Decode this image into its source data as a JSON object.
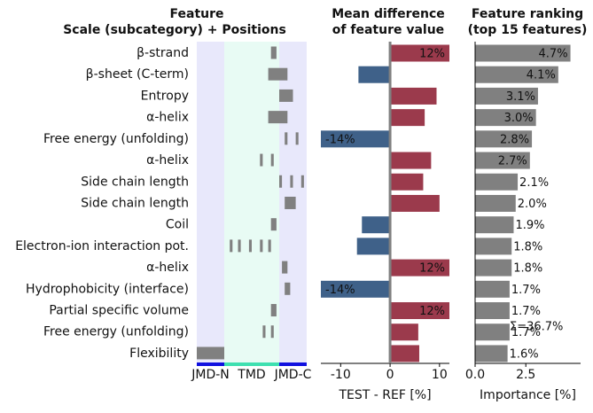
{
  "chart_data": [
    {
      "type": "feature-map",
      "title": [
        "Feature",
        "Scale (subcategory)  +  Positions"
      ],
      "categories": [
        "β-strand",
        "β-sheet (C-term)",
        "Entropy",
        "α-helix",
        "Free energy (unfolding)",
        "α-helix",
        "Side chain length",
        "Side chain length",
        "Coil",
        "Electron-ion interaction pot.",
        "α-helix",
        "Hydrophobicity (interface)",
        "Partial specific volume",
        "Free energy (unfolding)",
        "Flexibility"
      ],
      "segments": [
        [
          [
            27,
            29
          ]
        ],
        [
          [
            26,
            33
          ]
        ],
        [
          [
            30,
            35
          ]
        ],
        [
          [
            26,
            33
          ]
        ],
        [
          [
            32,
            33
          ],
          [
            36,
            37
          ]
        ],
        [
          [
            23,
            24
          ],
          [
            27,
            28
          ]
        ],
        [
          [
            30,
            31
          ],
          [
            34,
            35
          ],
          [
            38,
            39
          ]
        ],
        [
          [
            32,
            36
          ]
        ],
        [
          [
            27,
            29
          ]
        ],
        [
          [
            12,
            13
          ],
          [
            15,
            16
          ],
          [
            19,
            20
          ],
          [
            23,
            24
          ],
          [
            26,
            27
          ]
        ],
        [
          [
            31,
            33
          ]
        ],
        [
          [
            32,
            34
          ]
        ],
        [
          [
            27,
            29
          ]
        ],
        [
          [
            24,
            25
          ],
          [
            27,
            28
          ]
        ],
        [
          [
            0,
            10
          ]
        ]
      ],
      "xlim": [
        0,
        40
      ],
      "color": "#808080",
      "regions": [
        {
          "label": "JMD-N",
          "start": 0,
          "end": 10,
          "color": "#e8e8fb",
          "band_color": "#1010e0"
        },
        {
          "label": "TMD",
          "start": 10,
          "end": 30,
          "color": "#e8fbf4",
          "band_color": "#3ee0b0"
        },
        {
          "label": "JMD-C",
          "start": 30,
          "end": 40,
          "color": "#e8e8fb",
          "band_color": "#1010e0"
        }
      ]
    },
    {
      "type": "bar",
      "title": [
        "Mean difference",
        "of feature value"
      ],
      "xlabel": "TEST - REF [%]",
      "values": [
        12,
        -6.4,
        9.4,
        7,
        -14,
        8.3,
        6.7,
        10,
        -5.7,
        -6.7,
        12,
        -14,
        12,
        5.7,
        5.9
      ],
      "value_labels": [
        "12%",
        null,
        null,
        null,
        "-14%",
        null,
        null,
        null,
        null,
        null,
        "12%",
        "-14%",
        "12%",
        null,
        null
      ],
      "positive_color": "#9b3a4c",
      "negative_color": "#3f6189",
      "xlim": [
        -14,
        12
      ],
      "xticks": [
        -10,
        0,
        10
      ]
    },
    {
      "type": "bar",
      "title": [
        "Feature ranking",
        "(top 15 features)"
      ],
      "xlabel": "Importance [%]",
      "values": [
        4.7,
        4.1,
        3.1,
        3.0,
        2.8,
        2.7,
        2.1,
        2.0,
        1.9,
        1.8,
        1.8,
        1.7,
        1.7,
        1.7,
        1.6
      ],
      "value_labels": [
        "4.7%",
        "4.1%",
        "3.1%",
        "3.0%",
        "2.8%",
        "2.7%",
        "2.1%",
        "2.0%",
        "1.9%",
        "1.8%",
        "1.8%",
        "1.7%",
        "1.7%",
        "1.7%",
        "1.6%"
      ],
      "annotation": "Σ=36.7%",
      "color": "#808080",
      "xlim": [
        0,
        5.2
      ],
      "xticks": [
        {
          "value": 0,
          "label": "0.0"
        },
        2.5
      ]
    }
  ]
}
